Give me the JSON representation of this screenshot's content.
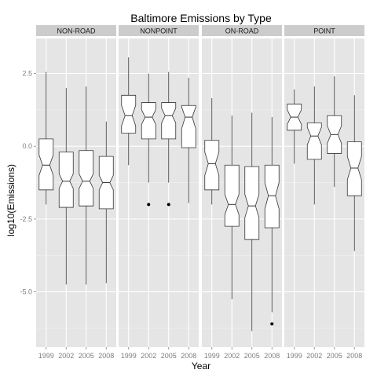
{
  "chart_data": {
    "type": "boxplot",
    "title": "Baltimore Emissions by Type",
    "xlabel": "Year",
    "ylabel": "log10(Emissions)",
    "ylim": [
      -6.9,
      3.7
    ],
    "y_ticks": [
      2.5,
      0.0,
      -2.5,
      -5.0
    ],
    "y_tick_labels": [
      "2.5",
      "0.0",
      "-2.5",
      "-5.0"
    ],
    "categories": [
      "1999",
      "2002",
      "2005",
      "2008"
    ],
    "notched": true,
    "grid": true,
    "colors": {
      "panel_bg": "#e5e5e5",
      "grid_major": "#ffffff",
      "strip_bg": "#cccccc",
      "box_fill": "#ffffff",
      "box_line": "#333333",
      "tick_text": "#7f7f7f"
    },
    "panels": [
      {
        "name": "NON-ROAD",
        "boxes": [
          {
            "year": "1999",
            "whisker_low": -2.0,
            "q1": -1.5,
            "median": -0.65,
            "q3": 0.25,
            "whisker_high": 2.55,
            "notch_low": -1.0,
            "notch_high": -0.3,
            "outliers": []
          },
          {
            "year": "2002",
            "whisker_low": -4.75,
            "q1": -2.1,
            "median": -1.2,
            "q3": -0.2,
            "whisker_high": 2.0,
            "notch_low": -1.45,
            "notch_high": -0.95,
            "outliers": []
          },
          {
            "year": "2005",
            "whisker_low": -4.75,
            "q1": -2.05,
            "median": -1.2,
            "q3": -0.15,
            "whisker_high": 2.05,
            "notch_low": -1.45,
            "notch_high": -0.95,
            "outliers": []
          },
          {
            "year": "2008",
            "whisker_low": -4.7,
            "q1": -2.15,
            "median": -1.25,
            "q3": -0.35,
            "whisker_high": 0.85,
            "notch_low": -1.5,
            "notch_high": -1.0,
            "outliers": []
          }
        ]
      },
      {
        "name": "NONPOINT",
        "boxes": [
          {
            "year": "1999",
            "whisker_low": -0.65,
            "q1": 0.45,
            "median": 1.05,
            "q3": 1.75,
            "whisker_high": 3.05,
            "notch_low": 0.7,
            "notch_high": 1.4,
            "outliers": []
          },
          {
            "year": "2002",
            "whisker_low": -1.25,
            "q1": 0.25,
            "median": 1.0,
            "q3": 1.5,
            "whisker_high": 2.5,
            "notch_low": 0.75,
            "notch_high": 1.25,
            "outliers": [
              -2.0
            ]
          },
          {
            "year": "2005",
            "whisker_low": -1.25,
            "q1": 0.25,
            "median": 1.05,
            "q3": 1.5,
            "whisker_high": 2.55,
            "notch_low": 0.8,
            "notch_high": 1.3,
            "outliers": [
              -2.0
            ]
          },
          {
            "year": "2008",
            "whisker_low": -1.95,
            "q1": -0.05,
            "median": 1.0,
            "q3": 1.4,
            "whisker_high": 2.35,
            "notch_low": 0.6,
            "notch_high": 1.35,
            "outliers": []
          }
        ]
      },
      {
        "name": "ON-ROAD",
        "boxes": [
          {
            "year": "1999",
            "whisker_low": -2.0,
            "q1": -1.5,
            "median": -0.6,
            "q3": 0.2,
            "whisker_high": 1.65,
            "notch_low": -1.0,
            "notch_high": -0.2,
            "outliers": []
          },
          {
            "year": "2002",
            "whisker_low": -5.25,
            "q1": -2.75,
            "median": -2.0,
            "q3": -0.65,
            "whisker_high": 1.05,
            "notch_low": -2.35,
            "notch_high": -1.65,
            "outliers": []
          },
          {
            "year": "2005",
            "whisker_low": -6.35,
            "q1": -3.2,
            "median": -2.05,
            "q3": -0.7,
            "whisker_high": 1.15,
            "notch_low": -2.45,
            "notch_high": -1.65,
            "outliers": []
          },
          {
            "year": "2008",
            "whisker_low": -5.7,
            "q1": -2.8,
            "median": -1.7,
            "q3": -0.65,
            "whisker_high": 1.0,
            "notch_low": -2.15,
            "notch_high": -1.25,
            "outliers": [
              -6.1
            ]
          }
        ]
      },
      {
        "name": "POINT",
        "boxes": [
          {
            "year": "1999",
            "whisker_low": -0.6,
            "q1": 0.55,
            "median": 1.0,
            "q3": 1.45,
            "whisker_high": 1.95,
            "notch_low": 0.75,
            "notch_high": 1.25,
            "outliers": []
          },
          {
            "year": "2002",
            "whisker_low": -2.0,
            "q1": -0.45,
            "median": 0.35,
            "q3": 0.8,
            "whisker_high": 2.05,
            "notch_low": 0.05,
            "notch_high": 0.65,
            "outliers": []
          },
          {
            "year": "2005",
            "whisker_low": -1.4,
            "q1": -0.25,
            "median": 0.4,
            "q3": 1.05,
            "whisker_high": 2.4,
            "notch_low": 0.1,
            "notch_high": 0.7,
            "outliers": []
          },
          {
            "year": "2008",
            "whisker_low": -3.6,
            "q1": -1.7,
            "median": -0.75,
            "q3": 0.15,
            "whisker_high": 1.75,
            "notch_low": -1.15,
            "notch_high": -0.35,
            "outliers": []
          }
        ]
      }
    ]
  }
}
